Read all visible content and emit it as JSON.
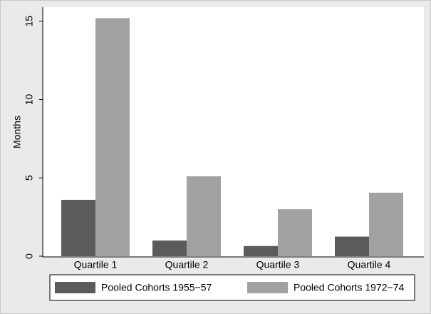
{
  "chart_data": {
    "type": "bar",
    "y_label": "Months",
    "categories": [
      "Quartile 1",
      "Quartile 2",
      "Quartile 3",
      "Quartile 4"
    ],
    "series": [
      {
        "name": "Pooled Cohorts 1955−57",
        "color": "#5b5b5b",
        "values": [
          3.6,
          1.0,
          0.65,
          1.25
        ]
      },
      {
        "name": "Pooled Cohorts 1972−74",
        "color": "#a1a1a1",
        "values": [
          15.2,
          5.1,
          3.0,
          4.05
        ]
      }
    ],
    "ylim": [
      0,
      15.9
    ],
    "yticks": [
      0,
      5,
      10,
      15
    ],
    "grid": false,
    "legend": "bottom"
  }
}
